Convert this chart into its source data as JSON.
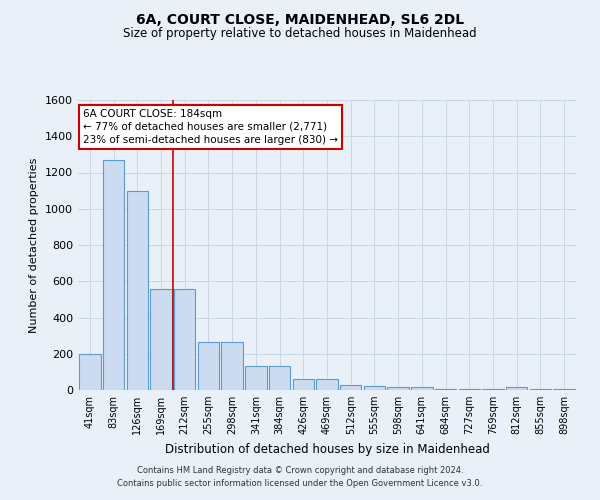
{
  "title1": "6A, COURT CLOSE, MAIDENHEAD, SL6 2DL",
  "title2": "Size of property relative to detached houses in Maidenhead",
  "xlabel": "Distribution of detached houses by size in Maidenhead",
  "ylabel": "Number of detached properties",
  "footer1": "Contains HM Land Registry data © Crown copyright and database right 2024.",
  "footer2": "Contains public sector information licensed under the Open Government Licence v3.0.",
  "categories": [
    "41sqm",
    "83sqm",
    "126sqm",
    "169sqm",
    "212sqm",
    "255sqm",
    "298sqm",
    "341sqm",
    "384sqm",
    "426sqm",
    "469sqm",
    "512sqm",
    "555sqm",
    "598sqm",
    "641sqm",
    "684sqm",
    "727sqm",
    "769sqm",
    "812sqm",
    "855sqm",
    "898sqm"
  ],
  "values": [
    200,
    1270,
    1100,
    560,
    560,
    265,
    265,
    130,
    130,
    60,
    60,
    30,
    20,
    15,
    15,
    5,
    5,
    5,
    15,
    5,
    5
  ],
  "bar_color": "#ccdcf0",
  "bar_edge_color": "#5b9bd5",
  "grid_color": "#c8d8e8",
  "background_color": "#eaf0f8",
  "ylim": [
    0,
    1600
  ],
  "yticks": [
    0,
    200,
    400,
    600,
    800,
    1000,
    1200,
    1400,
    1600
  ],
  "vline_x_index": 3.5,
  "vline_color": "#cc0000",
  "annotation_text": "6A COURT CLOSE: 184sqm\n← 77% of detached houses are smaller (2,771)\n23% of semi-detached houses are larger (830) →",
  "annotation_box_color": "#ffffff",
  "annotation_border_color": "#cc0000",
  "title1_fontsize": 10,
  "title2_fontsize": 8.5,
  "ylabel_fontsize": 8,
  "xlabel_fontsize": 8.5,
  "tick_fontsize": 7,
  "annotation_fontsize": 7.5,
  "footer_fontsize": 6
}
